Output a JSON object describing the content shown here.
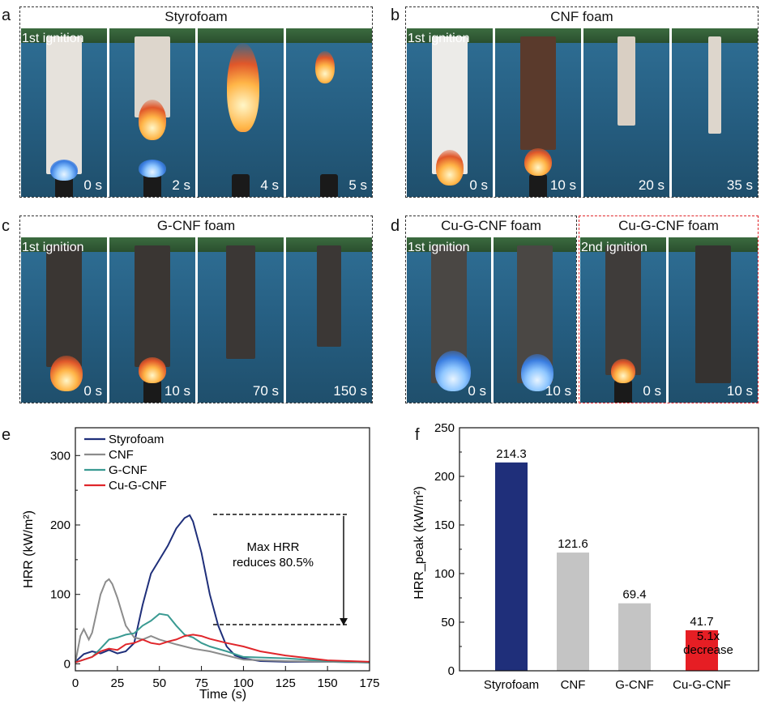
{
  "panel_labels": {
    "a": "a",
    "b": "b",
    "c": "c",
    "d": "d",
    "e": "e",
    "f": "f"
  },
  "panel_a": {
    "title": "Styrofoam",
    "ignition": "1st ignition",
    "times": [
      "0 s",
      "2 s",
      "4 s",
      "5 s"
    ]
  },
  "panel_b": {
    "title": "CNF foam",
    "ignition": "1st ignition",
    "times": [
      "0 s",
      "10 s",
      "20 s",
      "35 s"
    ]
  },
  "panel_c": {
    "title": "G-CNF foam",
    "ignition": "1st ignition",
    "times": [
      "0 s",
      "10 s",
      "70 s",
      "150 s"
    ]
  },
  "panel_d1": {
    "title": "Cu-G-CNF foam",
    "ignition": "1st ignition",
    "times": [
      "0 s",
      "10 s"
    ]
  },
  "panel_d2": {
    "title": "Cu-G-CNF foam",
    "ignition": "2nd ignition",
    "times": [
      "0 s",
      "10 s"
    ]
  },
  "colors": {
    "styrofoam": "#1f2f7a",
    "cnf": "#8c8c8c",
    "gcnf": "#3a9a92",
    "cugcnf": "#e0262b",
    "bar_gray": "#c4c4c4",
    "bar_blue": "#1f2f7a",
    "bar_red": "#e61e24"
  },
  "chart_data": [
    {
      "type": "line",
      "xlabel": "Time (s)",
      "ylabel": "HRR (kW/m²)",
      "xlim": [
        0,
        175
      ],
      "ylim": [
        -10,
        340
      ],
      "xticks": [
        "0",
        "25",
        "50",
        "75",
        "100",
        "125",
        "150",
        "175"
      ],
      "yticks": [
        "0",
        "100",
        "200",
        "300"
      ],
      "legend_position": "top-left",
      "annotation": [
        "Max HRR",
        "reduces 80.5%"
      ],
      "series": [
        {
          "name": "Styrofoam",
          "x": [
            0,
            5,
            10,
            15,
            20,
            25,
            30,
            35,
            40,
            45,
            50,
            55,
            60,
            65,
            68,
            70,
            75,
            80,
            85,
            90,
            95,
            100,
            110,
            125,
            150,
            175
          ],
          "y": [
            3,
            14,
            18,
            15,
            20,
            15,
            18,
            30,
            85,
            130,
            150,
            170,
            195,
            210,
            214,
            205,
            160,
            100,
            55,
            25,
            12,
            8,
            4,
            3,
            3,
            2
          ]
        },
        {
          "name": "CNF",
          "x": [
            0,
            3,
            5,
            8,
            10,
            15,
            18,
            20,
            22,
            25,
            30,
            35,
            40,
            45,
            50,
            60,
            70,
            80,
            90,
            100,
            125,
            150,
            175
          ],
          "y": [
            2,
            40,
            50,
            35,
            45,
            100,
            118,
            122,
            115,
            95,
            55,
            38,
            35,
            40,
            35,
            28,
            22,
            18,
            12,
            6,
            4,
            3,
            2
          ]
        },
        {
          "name": "G-CNF",
          "x": [
            0,
            10,
            15,
            20,
            25,
            30,
            35,
            40,
            45,
            50,
            55,
            60,
            65,
            70,
            75,
            80,
            90,
            100,
            125,
            150,
            175
          ],
          "y": [
            2,
            10,
            22,
            35,
            38,
            42,
            44,
            55,
            62,
            72,
            70,
            55,
            42,
            38,
            30,
            25,
            18,
            10,
            8,
            4,
            2
          ]
        },
        {
          "name": "Cu-G-CNF",
          "x": [
            0,
            10,
            15,
            20,
            25,
            30,
            35,
            40,
            45,
            50,
            55,
            60,
            65,
            70,
            75,
            80,
            90,
            100,
            110,
            125,
            150,
            175
          ],
          "y": [
            2,
            10,
            18,
            22,
            20,
            28,
            30,
            35,
            30,
            28,
            32,
            35,
            40,
            42,
            40,
            36,
            30,
            25,
            18,
            12,
            5,
            3
          ]
        }
      ]
    },
    {
      "type": "bar",
      "categories": [
        "Styrofoam",
        "CNF",
        "G-CNF",
        "Cu-G-CNF"
      ],
      "values": [
        214.3,
        121.6,
        69.4,
        41.7
      ],
      "value_labels": [
        "214.3",
        "121.6",
        "69.4",
        "41.7"
      ],
      "ylabel": "HRR_peak (kW/m²)",
      "ylim": [
        0,
        250
      ],
      "yticks": [
        "0",
        "50",
        "100",
        "150",
        "200",
        "250"
      ],
      "annotation": [
        "5.1x",
        "decrease"
      ]
    }
  ]
}
